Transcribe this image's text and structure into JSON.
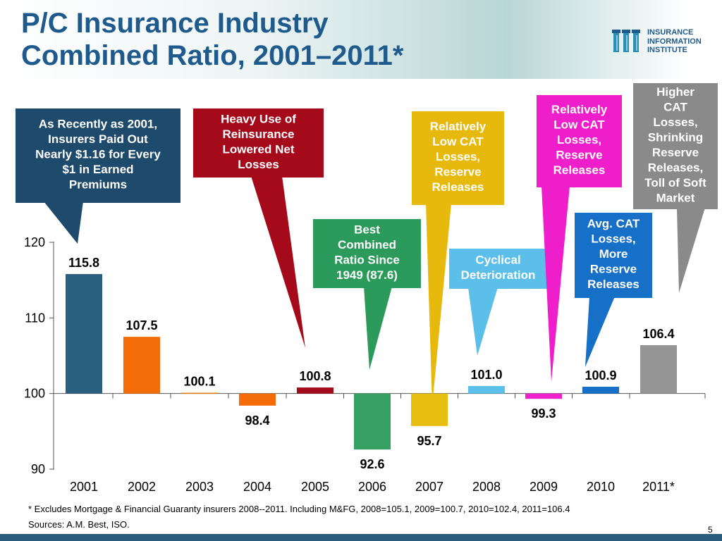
{
  "title": {
    "line1": "P/C Insurance Industry",
    "line2": "Combined Ratio, 2001–2011*"
  },
  "logo": {
    "line1": "INSURANCE",
    "line2": "INFORMATION",
    "line3": "INSTITUTE"
  },
  "chart_data": {
    "type": "bar",
    "title": "P/C Insurance Industry Combined Ratio, 2001–2011*",
    "categories": [
      "2001",
      "2002",
      "2003",
      "2004",
      "2005",
      "2006",
      "2007",
      "2008",
      "2009",
      "2010",
      "2011*"
    ],
    "values": [
      115.8,
      107.5,
      100.1,
      98.4,
      100.8,
      92.6,
      95.7,
      101.0,
      99.3,
      100.9,
      106.4
    ],
    "value_labels": [
      "115.8",
      "107.5",
      "100.1",
      "98.4",
      "100.8",
      "92.6",
      "95.7",
      "101.0",
      "99.3",
      "100.9",
      "106.4"
    ],
    "colors": [
      "#2b5f7f",
      "#f46c0a",
      "#e07a14",
      "#f46c0a",
      "#a50a1a",
      "#37a164",
      "#e8bf10",
      "#5bc0ea",
      "#ee22cc",
      "#1670c8",
      "#959595"
    ],
    "baseline": 100,
    "ylim": [
      90,
      120
    ],
    "yticks": [
      90,
      100,
      110,
      120
    ],
    "ytick_labels": [
      "90",
      "100",
      "110",
      "120"
    ],
    "xlabel": "",
    "ylabel": "",
    "grid": false,
    "annotations": [
      {
        "text": [
          "As Recently as 2001,",
          "Insurers Paid Out",
          "Nearly $1.16 for Every",
          "$1 in Earned",
          "Premiums"
        ],
        "target": "2001",
        "color": "#1e4a6b"
      },
      {
        "text": [
          "Heavy Use of",
          "Reinsurance",
          "Lowered Net",
          "Losses"
        ],
        "target": "2005",
        "color": "#a50a1a"
      },
      {
        "text": [
          "Best",
          "Combined",
          "Ratio Since",
          "1949 (87.6)"
        ],
        "target": "2006",
        "color": "#2c9a5a"
      },
      {
        "text": [
          "Relatively",
          "Low CAT",
          "Losses,",
          "Reserve",
          "Releases"
        ],
        "target": "2007",
        "color": "#e6b90c"
      },
      {
        "text": [
          "Cyclical",
          "Deterioration"
        ],
        "target": "2008",
        "color": "#5bbfea"
      },
      {
        "text": [
          "Relatively",
          "Low CAT",
          "Losses,",
          "Reserve",
          "Releases"
        ],
        "target": "2009",
        "color": "#ee1ecb"
      },
      {
        "text": [
          "Avg. CAT",
          "Losses,",
          "More",
          "Reserve",
          "Releases"
        ],
        "target": "2010",
        "color": "#1670c8"
      },
      {
        "text": [
          "Higher",
          "CAT",
          "Losses,",
          "Shrinking",
          "Reserve",
          "Releases,",
          "Toll of Soft",
          "Market"
        ],
        "target": "2011*",
        "color": "#8a8a8a"
      }
    ]
  },
  "footnote": "* Excludes Mortgage & Financial Guaranty insurers 2008--2011. Including M&FG, 2008=105.1, 2009=100.7, 2010=102.4, 2011=106.4",
  "sources": "Sources: A.M. Best, ISO.",
  "page_number": "5"
}
